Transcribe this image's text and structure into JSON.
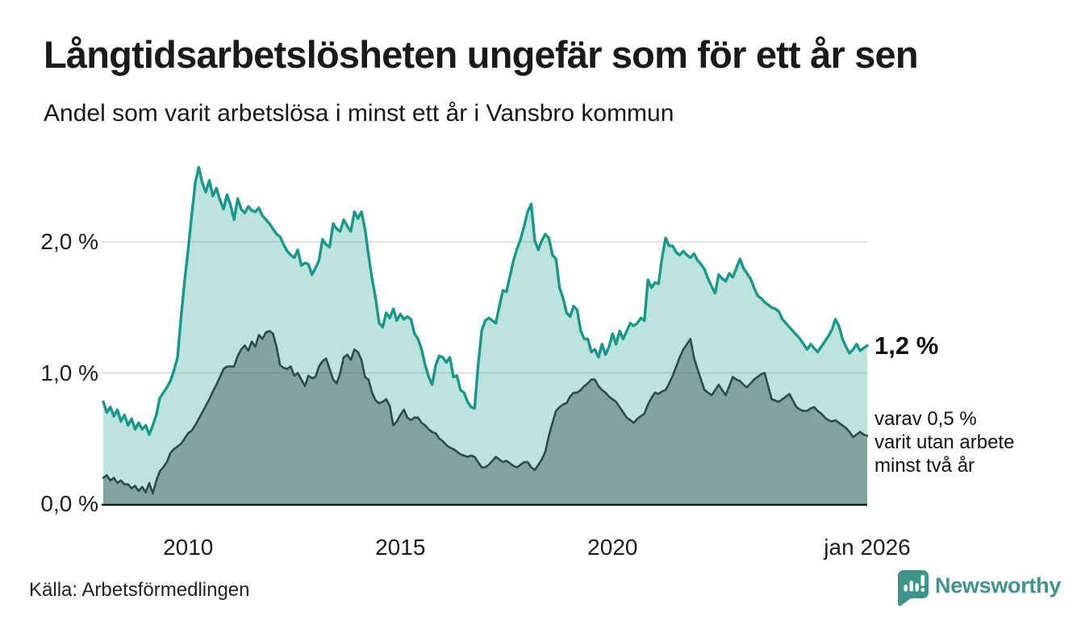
{
  "colors": {
    "grid": "#d8d8d8",
    "baseline": "#191919",
    "text": "#1a1a1a",
    "accent_teal": "#17998a",
    "dark_green": "#2e4c47",
    "brand_teal": "#3d948b"
  },
  "annotations": {
    "latest": "1,2 %",
    "secondary": [
      "varav 0,5 %",
      "varit utan arbete",
      "minst två år"
    ]
  },
  "source": {
    "label": "Källa: Arbetsförmedlingen"
  },
  "branding": {
    "name": "Newsworthy",
    "color": "#3d948b"
  },
  "chart_data": {
    "type": "area",
    "title": "Långtidsarbetslösheten ungefär som för ett år sen",
    "subtitle": "Andel som varit arbetslösa i minst ett år i Vansbro kommun",
    "x_start": "2008-01",
    "x_end": "2026-01",
    "frequency": "monthly",
    "unit": "%",
    "grid": "horizontal",
    "ylim": [
      0,
      2.6
    ],
    "xticks": [
      {
        "label": "2010",
        "date": "2010-01"
      },
      {
        "label": "2015",
        "date": "2015-01"
      },
      {
        "label": "2020",
        "date": "2020-01"
      },
      {
        "label": "jan 2026",
        "date": "2026-01"
      }
    ],
    "yticks": [
      {
        "label": "0,0 %",
        "value": 0
      },
      {
        "label": "1,0 %",
        "value": 1
      },
      {
        "label": "2,0 %",
        "value": 2
      }
    ],
    "series": [
      {
        "name": "Andel som varit arbetslösa minst ett år",
        "color": "#17998a",
        "fill": "rgba(23,153,138,0.28)",
        "stroke_width": 3.4,
        "latest_label": "1,2 %",
        "values": [
          0.78,
          0.7,
          0.74,
          0.67,
          0.72,
          0.63,
          0.68,
          0.6,
          0.65,
          0.57,
          0.62,
          0.57,
          0.6,
          0.53,
          0.6,
          0.68,
          0.81,
          0.85,
          0.89,
          0.94,
          1.02,
          1.12,
          1.43,
          1.7,
          1.94,
          2.2,
          2.45,
          2.57,
          2.45,
          2.38,
          2.47,
          2.35,
          2.41,
          2.32,
          2.25,
          2.36,
          2.28,
          2.17,
          2.33,
          2.25,
          2.22,
          2.27,
          2.24,
          2.23,
          2.26,
          2.2,
          2.17,
          2.14,
          2.1,
          2.06,
          2.04,
          1.98,
          1.93,
          1.9,
          1.88,
          1.94,
          1.82,
          1.84,
          1.83,
          1.75,
          1.8,
          1.86,
          2.02,
          1.98,
          1.96,
          2.14,
          2.1,
          2.08,
          2.17,
          2.12,
          2.08,
          2.23,
          2.18,
          2.23,
          2.1,
          1.9,
          1.72,
          1.57,
          1.38,
          1.35,
          1.46,
          1.42,
          1.49,
          1.4,
          1.45,
          1.41,
          1.43,
          1.41,
          1.3,
          1.26,
          1.18,
          1.06,
          0.97,
          0.91,
          1.06,
          1.13,
          1.12,
          1.08,
          1.12,
          0.97,
          0.98,
          0.87,
          0.85,
          0.78,
          0.74,
          0.73,
          1.06,
          1.32,
          1.4,
          1.42,
          1.4,
          1.38,
          1.51,
          1.63,
          1.62,
          1.74,
          1.86,
          1.95,
          2.02,
          2.12,
          2.23,
          2.29,
          2.01,
          1.94,
          2.01,
          2.06,
          2.03,
          1.9,
          1.87,
          1.65,
          1.57,
          1.46,
          1.43,
          1.51,
          1.48,
          1.32,
          1.26,
          1.26,
          1.16,
          1.18,
          1.12,
          1.22,
          1.14,
          1.2,
          1.3,
          1.22,
          1.32,
          1.26,
          1.32,
          1.38,
          1.36,
          1.38,
          1.42,
          1.4,
          1.71,
          1.65,
          1.69,
          1.68,
          1.88,
          2.03,
          1.97,
          1.97,
          1.92,
          1.9,
          1.93,
          1.9,
          1.88,
          1.91,
          1.86,
          1.83,
          1.79,
          1.72,
          1.66,
          1.61,
          1.75,
          1.72,
          1.7,
          1.76,
          1.73,
          1.8,
          1.87,
          1.8,
          1.76,
          1.72,
          1.65,
          1.59,
          1.57,
          1.54,
          1.52,
          1.5,
          1.49,
          1.47,
          1.41,
          1.38,
          1.35,
          1.32,
          1.29,
          1.26,
          1.22,
          1.18,
          1.22,
          1.19,
          1.16,
          1.2,
          1.24,
          1.28,
          1.33,
          1.41,
          1.36,
          1.26,
          1.2,
          1.15,
          1.18,
          1.22,
          1.17,
          1.19,
          1.21
        ]
      },
      {
        "name": "Andel som varit utan arbete minst två år",
        "color": "#2e4c47",
        "fill": "rgba(46,76,71,0.42)",
        "stroke_width": 2.6,
        "latest_label": "0,5 %",
        "values": [
          0.2,
          0.22,
          0.18,
          0.2,
          0.16,
          0.18,
          0.15,
          0.15,
          0.12,
          0.14,
          0.1,
          0.13,
          0.09,
          0.16,
          0.08,
          0.18,
          0.25,
          0.28,
          0.32,
          0.39,
          0.42,
          0.44,
          0.46,
          0.5,
          0.54,
          0.56,
          0.6,
          0.65,
          0.7,
          0.75,
          0.8,
          0.86,
          0.91,
          0.97,
          1.03,
          1.05,
          1.05,
          1.05,
          1.13,
          1.18,
          1.21,
          1.17,
          1.24,
          1.2,
          1.29,
          1.26,
          1.31,
          1.32,
          1.3,
          1.2,
          1.06,
          1.04,
          1.03,
          1.05,
          0.98,
          1.0,
          0.95,
          0.9,
          0.98,
          0.96,
          0.97,
          1.05,
          1.09,
          1.11,
          1.03,
          0.95,
          0.92,
          1.0,
          1.12,
          1.14,
          1.1,
          1.18,
          1.16,
          1.1,
          0.97,
          0.95,
          0.85,
          0.79,
          0.77,
          0.78,
          0.8,
          0.75,
          0.6,
          0.63,
          0.68,
          0.72,
          0.66,
          0.64,
          0.66,
          0.66,
          0.62,
          0.6,
          0.57,
          0.55,
          0.54,
          0.5,
          0.48,
          0.45,
          0.43,
          0.42,
          0.4,
          0.38,
          0.37,
          0.36,
          0.37,
          0.36,
          0.32,
          0.28,
          0.28,
          0.3,
          0.33,
          0.36,
          0.34,
          0.32,
          0.33,
          0.31,
          0.29,
          0.28,
          0.3,
          0.32,
          0.32,
          0.28,
          0.26,
          0.3,
          0.34,
          0.4,
          0.52,
          0.62,
          0.71,
          0.74,
          0.76,
          0.77,
          0.82,
          0.85,
          0.85,
          0.87,
          0.9,
          0.92,
          0.95,
          0.95,
          0.9,
          0.87,
          0.85,
          0.82,
          0.8,
          0.78,
          0.74,
          0.7,
          0.66,
          0.64,
          0.62,
          0.65,
          0.67,
          0.69,
          0.76,
          0.81,
          0.85,
          0.84,
          0.86,
          0.87,
          0.92,
          0.98,
          1.05,
          1.12,
          1.18,
          1.22,
          1.26,
          1.12,
          1.03,
          0.95,
          0.87,
          0.85,
          0.83,
          0.87,
          0.91,
          0.87,
          0.83,
          0.9,
          0.97,
          0.95,
          0.94,
          0.91,
          0.89,
          0.92,
          0.95,
          0.97,
          0.99,
          1.0,
          0.9,
          0.8,
          0.79,
          0.78,
          0.8,
          0.82,
          0.84,
          0.79,
          0.74,
          0.72,
          0.71,
          0.71,
          0.73,
          0.74,
          0.71,
          0.69,
          0.66,
          0.64,
          0.63,
          0.64,
          0.62,
          0.6,
          0.58,
          0.55,
          0.51,
          0.53,
          0.55,
          0.53,
          0.52
        ]
      }
    ]
  }
}
